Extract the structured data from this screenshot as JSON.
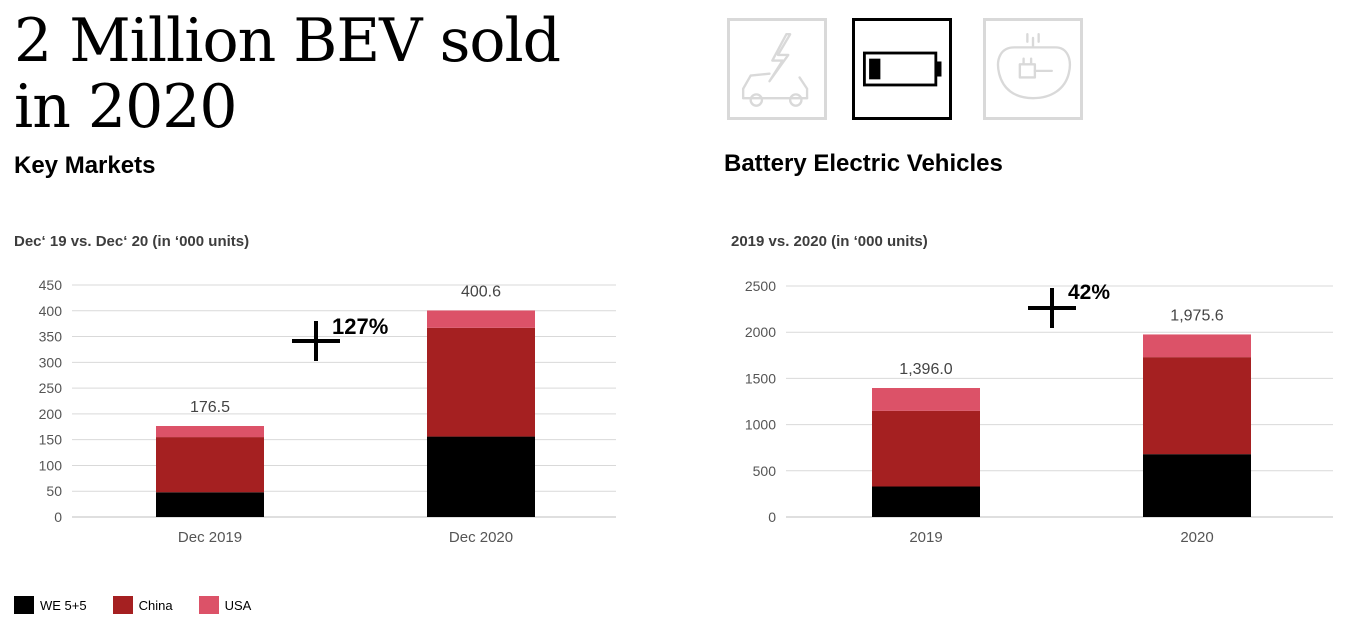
{
  "headline": {
    "line1": "2 Million BEV sold",
    "line2": "in 2020"
  },
  "left_section": {
    "title": "Key Markets",
    "subtitle": "Dec‘ 19 vs. Dec‘ 20 (in ‘000 units)"
  },
  "right_section": {
    "title": "Battery Electric Vehicles",
    "subtitle": "2019 vs. 2020 (in ‘000 units)"
  },
  "icons": [
    {
      "name": "car-charging-icon",
      "state": "inactive"
    },
    {
      "name": "battery-icon",
      "state": "active"
    },
    {
      "name": "electric-plug-car-icon",
      "state": "inactive"
    }
  ],
  "colors": {
    "we": "#000000",
    "china": "#a52021",
    "usa": "#dc5268",
    "grid": "#d9d9d9",
    "tick": "#555555"
  },
  "legend": [
    {
      "label": "WE 5+5",
      "key": "we"
    },
    {
      "label": "China",
      "key": "china"
    },
    {
      "label": "USA",
      "key": "usa"
    }
  ],
  "chart_data": [
    {
      "type": "bar",
      "stacked": true,
      "title": "Key Markets",
      "subtitle": "Dec‘ 19 vs. Dec‘ 20 (in ‘000 units)",
      "categories": [
        "Dec 2019",
        "Dec 2020"
      ],
      "series": [
        {
          "name": "WE 5+5",
          "key": "we",
          "values": [
            48,
            156
          ]
        },
        {
          "name": "China",
          "key": "china",
          "values": [
            107,
            211
          ]
        },
        {
          "name": "USA",
          "key": "usa",
          "values": [
            21.5,
            33.6
          ]
        }
      ],
      "totals": [
        "176.5",
        "400.6"
      ],
      "growth_label": "127%",
      "ylim": [
        0,
        450
      ],
      "yticks": [
        0,
        50,
        100,
        150,
        200,
        250,
        300,
        350,
        400,
        450
      ],
      "xlabel": "",
      "ylabel": "",
      "grid": true,
      "legend": "bottom-left"
    },
    {
      "type": "bar",
      "stacked": true,
      "title": "Battery Electric Vehicles",
      "subtitle": "2019 vs. 2020 (in ‘000 units)",
      "categories": [
        "2019",
        "2020"
      ],
      "series": [
        {
          "name": "WE 5+5",
          "key": "we",
          "values": [
            330,
            680
          ]
        },
        {
          "name": "China",
          "key": "china",
          "values": [
            820,
            1050
          ]
        },
        {
          "name": "USA",
          "key": "usa",
          "values": [
            246,
            245.6
          ]
        }
      ],
      "totals": [
        "1,396.0",
        "1,975.6"
      ],
      "growth_label": "42%",
      "ylim": [
        0,
        2500
      ],
      "yticks": [
        0,
        500,
        1000,
        1500,
        2000,
        2500
      ],
      "xlabel": "",
      "ylabel": "",
      "grid": true,
      "legend": "bottom-left"
    }
  ]
}
